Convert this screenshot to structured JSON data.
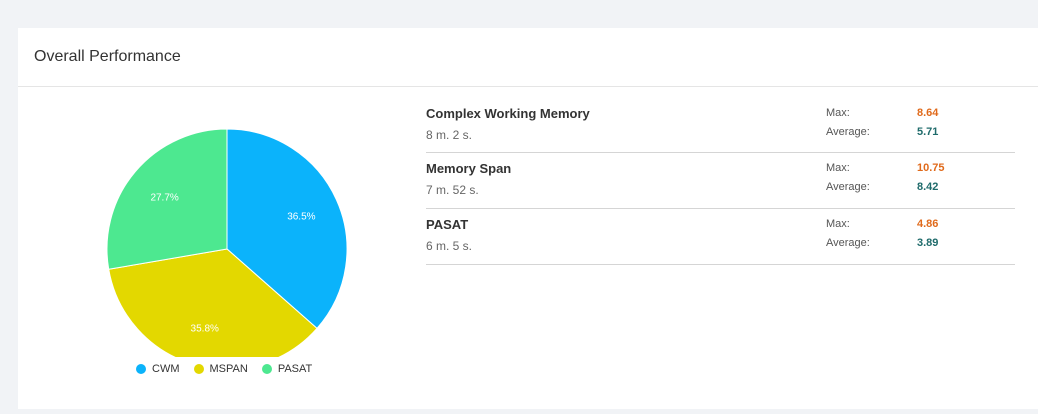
{
  "panel": {
    "title": "Overall Performance"
  },
  "colors": {
    "cwm": "#0bb3fb",
    "mspan": "#e3d800",
    "pasat": "#4de890",
    "max_value": "#e06a1b",
    "avg_value": "#1f6b6b"
  },
  "chart_data": {
    "type": "pie",
    "categories": [
      "CWM",
      "MSPAN",
      "PASAT"
    ],
    "values": [
      36.5,
      35.8,
      27.7
    ],
    "labels": [
      "36.5%",
      "35.8%",
      "27.7%"
    ],
    "legend": "bottom"
  },
  "legend": [
    {
      "label": "CWM",
      "color": "#0bb3fb"
    },
    {
      "label": "MSPAN",
      "color": "#e3d800"
    },
    {
      "label": "PASAT",
      "color": "#4de890"
    }
  ],
  "tests": [
    {
      "name": "Complex Working Memory",
      "time": "8 m. 2 s.",
      "max_label": "Max:",
      "max": "8.64",
      "avg_label": "Average:",
      "avg": "5.71"
    },
    {
      "name": "Memory Span",
      "time": "7 m. 52 s.",
      "max_label": "Max:",
      "max": "10.75",
      "avg_label": "Average:",
      "avg": "8.42"
    },
    {
      "name": "PASAT",
      "time": "6 m. 5 s.",
      "max_label": "Max:",
      "max": "4.86",
      "avg_label": "Average:",
      "avg": "3.89"
    }
  ]
}
